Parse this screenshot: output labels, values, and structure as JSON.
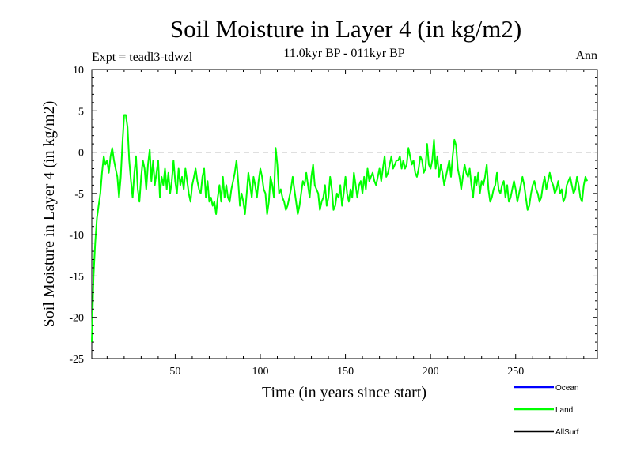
{
  "chart_data": {
    "type": "line",
    "title": "Soil Moisture in Layer 4 (in kg/m2)",
    "subtitle": "11.0kyr BP - 011kyr BP",
    "expt_label": "Expt = teadl3-tdwzl",
    "season": "Ann",
    "xlabel": "Time (in years since start)",
    "ylabel": "Soil Moisture in Layer 4 (in kg/m2)",
    "xlim": [
      1,
      298
    ],
    "ylim": [
      -25,
      10
    ],
    "x_ticks": [
      50,
      100,
      150,
      200,
      250
    ],
    "y_ticks": [
      10,
      5,
      0,
      -5,
      -10,
      -15,
      -20,
      -25
    ],
    "reference_line": 0,
    "legend": [
      {
        "name": "Ocean",
        "color": "#0000ff"
      },
      {
        "name": "Land",
        "color": "#00ff00"
      },
      {
        "name": "AllSurf",
        "color": "#000000"
      }
    ],
    "series": [
      {
        "name": "Land",
        "color": "#00ff00",
        "x_start": 1,
        "x_step": 1,
        "values": [
          -23.0,
          -15.0,
          -11.0,
          -8.0,
          -6.5,
          -5.0,
          -2.5,
          -0.5,
          -1.5,
          -1.0,
          -2.5,
          -0.5,
          0.5,
          -1.0,
          -2.0,
          -3.0,
          -5.5,
          -3.0,
          1.0,
          4.5,
          4.5,
          3.0,
          -1.0,
          -3.5,
          -5.5,
          -2.5,
          -0.5,
          -4.5,
          -6.0,
          -3.0,
          -1.0,
          -2.0,
          -4.5,
          -1.5,
          0.3,
          -3.5,
          -1.0,
          -4.0,
          -2.5,
          -1.0,
          -5.5,
          -3.0,
          -4.0,
          -2.0,
          -4.5,
          -2.5,
          -5.0,
          -3.5,
          -1.0,
          -3.5,
          -5.0,
          -2.0,
          -4.0,
          -3.0,
          -4.5,
          -2.0,
          -3.5,
          -5.0,
          -6.0,
          -4.0,
          -3.0,
          -2.0,
          -3.5,
          -4.5,
          -5.0,
          -3.0,
          -2.0,
          -5.5,
          -3.5,
          -6.0,
          -5.5,
          -6.5,
          -6.0,
          -7.5,
          -5.5,
          -4.0,
          -6.0,
          -3.0,
          -5.5,
          -4.0,
          -5.5,
          -6.0,
          -4.5,
          -3.5,
          -2.5,
          -1.0,
          -3.5,
          -6.5,
          -5.0,
          -6.0,
          -7.5,
          -5.0,
          -2.5,
          -4.0,
          -5.5,
          -3.0,
          -4.0,
          -5.5,
          -3.5,
          -2.0,
          -3.0,
          -4.5,
          -5.0,
          -7.5,
          -6.0,
          -3.0,
          -4.0,
          -5.5,
          0.5,
          -1.5,
          -5.0,
          -4.5,
          -5.5,
          -6.0,
          -7.0,
          -6.5,
          -5.5,
          -4.5,
          -3.0,
          -4.5,
          -6.0,
          -7.5,
          -6.5,
          -5.0,
          -3.5,
          -4.0,
          -2.5,
          -4.0,
          -5.5,
          -3.0,
          -1.5,
          -4.0,
          -4.5,
          -5.0,
          -7.0,
          -6.0,
          -5.5,
          -4.0,
          -6.5,
          -5.5,
          -3.0,
          -4.5,
          -7.0,
          -6.5,
          -5.0,
          -5.5,
          -4.0,
          -6.5,
          -5.0,
          -3.0,
          -5.0,
          -6.0,
          -4.5,
          -5.5,
          -2.5,
          -4.0,
          -5.5,
          -4.0,
          -3.5,
          -5.0,
          -3.0,
          -4.5,
          -2.0,
          -3.5,
          -3.0,
          -2.5,
          -3.5,
          -4.0,
          -3.0,
          -2.0,
          -3.5,
          -2.0,
          -0.5,
          -3.0,
          -2.5,
          -1.5,
          -0.5,
          -2.0,
          -1.5,
          -1.0,
          -1.0,
          -0.5,
          -2.0,
          -1.0,
          -2.0,
          -1.5,
          0.5,
          -0.5,
          -1.5,
          -1.0,
          -2.5,
          -3.0,
          -2.0,
          -0.5,
          -1.0,
          -2.5,
          -2.0,
          1.0,
          -1.5,
          -2.0,
          -1.0,
          1.5,
          -2.0,
          -0.5,
          -3.0,
          -1.5,
          -2.5,
          -4.0,
          -3.0,
          -2.0,
          -1.0,
          -3.0,
          -0.5,
          1.5,
          0.8,
          -2.0,
          -3.0,
          -4.5,
          -3.0,
          -1.5,
          -2.5,
          -3.0,
          -2.0,
          -4.0,
          -5.5,
          -3.0,
          -4.0,
          -2.5,
          -5.0,
          -3.5,
          -4.0,
          -3.0,
          -1.5,
          -4.5,
          -6.0,
          -5.5,
          -4.5,
          -4.0,
          -2.5,
          -4.5,
          -5.0,
          -4.0,
          -3.5,
          -5.5,
          -4.0,
          -6.0,
          -5.5,
          -4.5,
          -3.5,
          -4.5,
          -6.0,
          -5.0,
          -4.0,
          -3.0,
          -4.0,
          -5.5,
          -7.0,
          -6.5,
          -5.0,
          -4.0,
          -3.5,
          -4.5,
          -5.0,
          -6.0,
          -5.5,
          -4.0,
          -3.0,
          -4.5,
          -3.5,
          -2.5,
          -3.5,
          -4.0,
          -5.0,
          -4.5,
          -3.5,
          -5.0,
          -4.5,
          -6.0,
          -5.5,
          -4.0,
          -3.5,
          -3.0,
          -4.0,
          -5.0,
          -4.5,
          -3.0,
          -4.0,
          -5.5,
          -6.0,
          -4.0,
          -3.0,
          -3.5
        ]
      }
    ]
  }
}
